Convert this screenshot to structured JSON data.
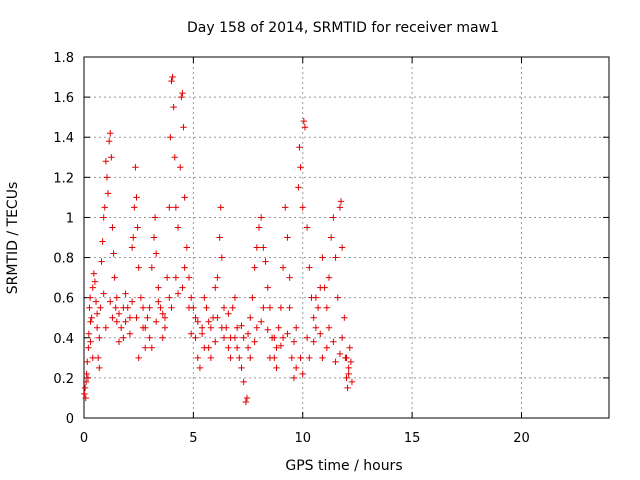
{
  "chart_data": {
    "type": "scatter",
    "title": "Day 158 of 2014, SRMTID for receiver maw1",
    "xlabel": "GPS time / hours",
    "ylabel": "SRMTID / TECUs",
    "xlim": [
      0,
      24
    ],
    "ylim": [
      0,
      1.8
    ],
    "xticks": [
      0,
      5,
      10,
      15,
      20
    ],
    "xtick_labels": [
      "0",
      "5",
      "10",
      "15",
      "20"
    ],
    "yticks": [
      0,
      0.2,
      0.4,
      0.6,
      0.8,
      1.0,
      1.2,
      1.4,
      1.6,
      1.8
    ],
    "ytick_labels": [
      "0",
      "0.2",
      "0.4",
      "0.6",
      "0.8",
      "1",
      "1.2",
      "1.4",
      "1.6",
      "1.8"
    ],
    "grid": true,
    "marker": "+",
    "marker_color": "#e00000",
    "series": [
      {
        "name": "SRMTID",
        "points": [
          [
            0.02,
            0.12
          ],
          [
            0.05,
            0.15
          ],
          [
            0.08,
            0.1
          ],
          [
            0.1,
            0.18
          ],
          [
            0.12,
            0.22
          ],
          [
            0.15,
            0.28
          ],
          [
            0.18,
            0.2
          ],
          [
            0.2,
            0.35
          ],
          [
            0.22,
            0.42
          ],
          [
            0.25,
            0.55
          ],
          [
            0.28,
            0.6
          ],
          [
            0.3,
            0.38
          ],
          [
            0.35,
            0.5
          ],
          [
            0.4,
            0.65
          ],
          [
            0.45,
            0.72
          ],
          [
            0.5,
            0.68
          ],
          [
            0.55,
            0.58
          ],
          [
            0.6,
            0.45
          ],
          [
            0.65,
            0.3
          ],
          [
            0.7,
            0.25
          ],
          [
            0.75,
            0.55
          ],
          [
            0.8,
            0.78
          ],
          [
            0.85,
            0.88
          ],
          [
            0.9,
            1.0
          ],
          [
            0.95,
            1.05
          ],
          [
            1.0,
            1.28
          ],
          [
            1.05,
            1.2
          ],
          [
            1.1,
            1.12
          ],
          [
            1.15,
            1.38
          ],
          [
            1.2,
            1.42
          ],
          [
            1.25,
            1.3
          ],
          [
            1.3,
            0.95
          ],
          [
            1.35,
            0.82
          ],
          [
            1.4,
            0.7
          ],
          [
            1.45,
            0.55
          ],
          [
            1.5,
            0.48
          ],
          [
            1.6,
            0.52
          ],
          [
            1.7,
            0.45
          ],
          [
            1.8,
            0.4
          ],
          [
            1.9,
            0.62
          ],
          [
            2.0,
            0.55
          ],
          [
            2.1,
            0.5
          ],
          [
            2.2,
            0.85
          ],
          [
            2.25,
            0.9
          ],
          [
            2.3,
            1.05
          ],
          [
            2.35,
            1.25
          ],
          [
            2.4,
            1.1
          ],
          [
            2.45,
            0.95
          ],
          [
            2.5,
            0.75
          ],
          [
            2.6,
            0.6
          ],
          [
            2.7,
            0.45
          ],
          [
            2.8,
            0.35
          ],
          [
            2.9,
            0.5
          ],
          [
            3.0,
            0.55
          ],
          [
            3.1,
            0.75
          ],
          [
            3.2,
            0.9
          ],
          [
            3.25,
            1.0
          ],
          [
            3.3,
            0.82
          ],
          [
            3.4,
            0.65
          ],
          [
            3.5,
            0.55
          ],
          [
            3.6,
            0.4
          ],
          [
            3.7,
            0.5
          ],
          [
            3.8,
            0.7
          ],
          [
            3.9,
            1.05
          ],
          [
            3.95,
            1.4
          ],
          [
            4.0,
            1.68
          ],
          [
            4.05,
            1.7
          ],
          [
            4.1,
            1.55
          ],
          [
            4.15,
            1.3
          ],
          [
            4.2,
            1.05
          ],
          [
            4.3,
            0.95
          ],
          [
            4.4,
            1.25
          ],
          [
            4.45,
            1.6
          ],
          [
            4.5,
            1.62
          ],
          [
            4.55,
            1.45
          ],
          [
            4.6,
            1.1
          ],
          [
            4.7,
            0.85
          ],
          [
            4.8,
            0.7
          ],
          [
            4.9,
            0.6
          ],
          [
            5.0,
            0.55
          ],
          [
            5.1,
            0.4
          ],
          [
            5.2,
            0.3
          ],
          [
            5.3,
            0.25
          ],
          [
            5.4,
            0.45
          ],
          [
            5.5,
            0.6
          ],
          [
            5.6,
            0.55
          ],
          [
            5.7,
            0.35
          ],
          [
            5.8,
            0.45
          ],
          [
            5.9,
            0.5
          ],
          [
            6.0,
            0.65
          ],
          [
            6.1,
            0.7
          ],
          [
            6.2,
            0.9
          ],
          [
            6.25,
            1.05
          ],
          [
            6.3,
            0.8
          ],
          [
            6.4,
            0.55
          ],
          [
            6.5,
            0.45
          ],
          [
            6.6,
            0.35
          ],
          [
            6.7,
            0.4
          ],
          [
            6.8,
            0.55
          ],
          [
            6.9,
            0.6
          ],
          [
            7.0,
            0.45
          ],
          [
            7.1,
            0.3
          ],
          [
            7.2,
            0.25
          ],
          [
            7.3,
            0.18
          ],
          [
            7.4,
            0.08
          ],
          [
            7.45,
            0.1
          ],
          [
            7.5,
            0.35
          ],
          [
            7.6,
            0.5
          ],
          [
            7.7,
            0.6
          ],
          [
            7.8,
            0.75
          ],
          [
            7.9,
            0.85
          ],
          [
            8.0,
            0.95
          ],
          [
            8.1,
            1.0
          ],
          [
            8.2,
            0.85
          ],
          [
            8.3,
            0.78
          ],
          [
            8.4,
            0.65
          ],
          [
            8.5,
            0.55
          ],
          [
            8.6,
            0.4
          ],
          [
            8.7,
            0.3
          ],
          [
            8.8,
            0.35
          ],
          [
            8.9,
            0.45
          ],
          [
            9.0,
            0.55
          ],
          [
            9.1,
            0.75
          ],
          [
            9.2,
            1.05
          ],
          [
            9.3,
            0.9
          ],
          [
            9.4,
            0.7
          ],
          [
            9.5,
            0.3
          ],
          [
            9.6,
            0.2
          ],
          [
            9.7,
            0.25
          ],
          [
            9.8,
            1.15
          ],
          [
            9.85,
            1.35
          ],
          [
            9.9,
            1.25
          ],
          [
            10.0,
            1.05
          ],
          [
            10.05,
            1.48
          ],
          [
            10.1,
            1.45
          ],
          [
            10.2,
            0.95
          ],
          [
            10.3,
            0.75
          ],
          [
            10.4,
            0.6
          ],
          [
            10.5,
            0.5
          ],
          [
            10.6,
            0.45
          ],
          [
            10.7,
            0.55
          ],
          [
            10.8,
            0.65
          ],
          [
            10.9,
            0.8
          ],
          [
            11.0,
            0.65
          ],
          [
            11.1,
            0.55
          ],
          [
            11.2,
            0.7
          ],
          [
            11.3,
            0.9
          ],
          [
            11.4,
            1.0
          ],
          [
            11.5,
            0.8
          ],
          [
            11.6,
            0.6
          ],
          [
            11.7,
            1.05
          ],
          [
            11.75,
            1.08
          ],
          [
            11.8,
            0.85
          ],
          [
            11.9,
            0.5
          ],
          [
            11.95,
            0.3
          ],
          [
            12.0,
            0.2
          ],
          [
            12.05,
            0.15
          ],
          [
            12.1,
            0.25
          ],
          [
            12.15,
            0.35
          ],
          [
            12.2,
            0.28
          ],
          [
            12.25,
            0.18
          ],
          [
            0.3,
            0.48
          ],
          [
            0.6,
            0.52
          ],
          [
            0.9,
            0.62
          ],
          [
            1.2,
            0.58
          ],
          [
            1.5,
            0.6
          ],
          [
            1.8,
            0.55
          ],
          [
            2.1,
            0.42
          ],
          [
            2.4,
            0.5
          ],
          [
            2.7,
            0.55
          ],
          [
            3.0,
            0.4
          ],
          [
            3.3,
            0.48
          ],
          [
            3.6,
            0.52
          ],
          [
            3.9,
            0.6
          ],
          [
            4.2,
            0.7
          ],
          [
            4.5,
            0.65
          ],
          [
            4.8,
            0.55
          ],
          [
            5.1,
            0.5
          ],
          [
            5.4,
            0.42
          ],
          [
            5.7,
            0.48
          ],
          [
            6.0,
            0.38
          ],
          [
            6.3,
            0.45
          ],
          [
            6.6,
            0.52
          ],
          [
            6.9,
            0.4
          ],
          [
            7.2,
            0.46
          ],
          [
            7.5,
            0.42
          ],
          [
            7.8,
            0.38
          ],
          [
            8.1,
            0.48
          ],
          [
            8.4,
            0.44
          ],
          [
            8.7,
            0.4
          ],
          [
            9.0,
            0.36
          ],
          [
            9.3,
            0.42
          ],
          [
            9.6,
            0.38
          ],
          [
            9.9,
            0.3
          ],
          [
            10.2,
            0.4
          ],
          [
            10.5,
            0.38
          ],
          [
            10.8,
            0.42
          ],
          [
            11.1,
            0.35
          ],
          [
            11.4,
            0.38
          ],
          [
            11.7,
            0.32
          ],
          [
            12.0,
            0.3
          ],
          [
            0.4,
            0.3
          ],
          [
            0.7,
            0.4
          ],
          [
            1.0,
            0.45
          ],
          [
            1.3,
            0.5
          ],
          [
            1.6,
            0.38
          ],
          [
            1.9,
            0.48
          ],
          [
            2.2,
            0.58
          ],
          [
            2.5,
            0.3
          ],
          [
            2.8,
            0.45
          ],
          [
            3.1,
            0.35
          ],
          [
            3.4,
            0.58
          ],
          [
            3.7,
            0.45
          ],
          [
            4.0,
            0.55
          ],
          [
            4.3,
            0.62
          ],
          [
            4.6,
            0.75
          ],
          [
            4.9,
            0.42
          ],
          [
            5.2,
            0.48
          ],
          [
            5.5,
            0.35
          ],
          [
            5.8,
            0.3
          ],
          [
            6.1,
            0.5
          ],
          [
            6.4,
            0.4
          ],
          [
            6.7,
            0.3
          ],
          [
            7.0,
            0.35
          ],
          [
            7.3,
            0.4
          ],
          [
            7.6,
            0.3
          ],
          [
            7.9,
            0.45
          ],
          [
            8.2,
            0.55
          ],
          [
            8.5,
            0.3
          ],
          [
            8.8,
            0.25
          ],
          [
            9.1,
            0.4
          ],
          [
            9.4,
            0.55
          ],
          [
            9.7,
            0.45
          ],
          [
            10.0,
            0.22
          ],
          [
            10.3,
            0.3
          ],
          [
            10.6,
            0.6
          ],
          [
            10.9,
            0.3
          ],
          [
            11.2,
            0.45
          ],
          [
            11.5,
            0.28
          ],
          [
            11.8,
            0.4
          ],
          [
            12.1,
            0.22
          ]
        ]
      }
    ]
  }
}
